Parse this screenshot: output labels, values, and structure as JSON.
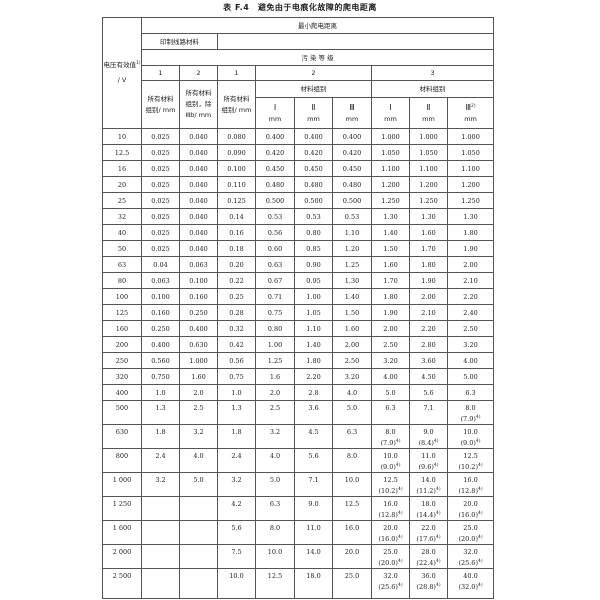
{
  "title": "表 F.4　避免由于电痕化故障的爬电距离",
  "header": {
    "voltage": "电压有效值",
    "voltage_sup": "1)",
    "voltage_unit": "/ V",
    "min_creepage": "最小爬电距离",
    "pcb_material": "印制线路材料",
    "pollution_degree": "污 染 等 级",
    "degrees": [
      "1",
      "2",
      "1",
      "2",
      "3"
    ],
    "all_groups": "所有材料组别/ mm",
    "all_groups_except": "所有材料组别，除Ⅲb/ mm",
    "all_groups_2": "所有材料组别/ mm",
    "material_group": "材料组别",
    "material_group_2": "材料组别",
    "groups": [
      "Ⅰ",
      "Ⅱ",
      "Ⅲ",
      "Ⅰ",
      "Ⅱ",
      "Ⅲ"
    ],
    "group_sup": "2)",
    "unit": "mm"
  },
  "footnote_mark": "4)",
  "rows": [
    {
      "v": "10",
      "c": [
        "0.025",
        "0.040",
        "0.080",
        "0.400",
        "0.400",
        "0.400",
        "1.000",
        "1.000",
        "1.000"
      ],
      "p": [
        "",
        "",
        ""
      ]
    },
    {
      "v": "12.5",
      "c": [
        "0.025",
        "0.040",
        "0.090",
        "0.420",
        "0.420",
        "0.420",
        "1.050",
        "1.050",
        "1.050"
      ],
      "p": [
        "",
        "",
        ""
      ]
    },
    {
      "v": "16",
      "c": [
        "0.025",
        "0.040",
        "0.100",
        "0.450",
        "0.450",
        "0.450",
        "1.100",
        "1.100",
        "1.100"
      ],
      "p": [
        "",
        "",
        ""
      ]
    },
    {
      "v": "20",
      "c": [
        "0.025",
        "0.040",
        "0.110",
        "0.480",
        "0.480",
        "0.480",
        "1.200",
        "1.200",
        "1.200"
      ],
      "p": [
        "",
        "",
        ""
      ]
    },
    {
      "v": "25",
      "c": [
        "0.025",
        "0.040",
        "0.125",
        "0.500",
        "0.500",
        "0.500",
        "1.250",
        "1.250",
        "1.250"
      ],
      "p": [
        "",
        "",
        ""
      ]
    },
    {
      "v": "32",
      "c": [
        "0.025",
        "0.040",
        "0.14",
        "0.53",
        "0.53",
        "0.53",
        "1.30",
        "1.30",
        "1.30"
      ],
      "p": [
        "",
        "",
        ""
      ]
    },
    {
      "v": "40",
      "c": [
        "0.025",
        "0.040",
        "0.16",
        "0.56",
        "0.80",
        "1.10",
        "1.40",
        "1.60",
        "1.80"
      ],
      "p": [
        "",
        "",
        ""
      ]
    },
    {
      "v": "50",
      "c": [
        "0.025",
        "0.040",
        "0.18",
        "0.60",
        "0.85",
        "1.20",
        "1.50",
        "1.70",
        "1.90"
      ],
      "p": [
        "",
        "",
        ""
      ]
    },
    {
      "v": "63",
      "c": [
        "0.04",
        "0.063",
        "0.20",
        "0.63",
        "0.90",
        "1.25",
        "1.60",
        "1.80",
        "2.00"
      ],
      "p": [
        "",
        "",
        ""
      ]
    },
    {
      "v": "80",
      "c": [
        "0.063",
        "0.100",
        "0.22",
        "0.67",
        "0.95",
        "1.30",
        "1.70",
        "1.90",
        "2.10"
      ],
      "p": [
        "",
        "",
        ""
      ]
    },
    {
      "v": "100",
      "c": [
        "0.100",
        "0.160",
        "0.25",
        "0.71",
        "1.00",
        "1.40",
        "1.80",
        "2.00",
        "2.20"
      ],
      "p": [
        "",
        "",
        ""
      ]
    },
    {
      "v": "125",
      "c": [
        "0.160",
        "0.250",
        "0.28",
        "0.75",
        "1.05",
        "1.50",
        "1.90",
        "2.10",
        "2.40"
      ],
      "p": [
        "",
        "",
        ""
      ]
    },
    {
      "v": "160",
      "c": [
        "0.250",
        "0.400",
        "0.32",
        "0.80",
        "1.10",
        "1.60",
        "2.00",
        "2.20",
        "2.50"
      ],
      "p": [
        "",
        "",
        ""
      ]
    },
    {
      "v": "200",
      "c": [
        "0.400",
        "0.630",
        "0.42",
        "1.00",
        "1.40",
        "2.00",
        "2.50",
        "2.80",
        "3.20"
      ],
      "p": [
        "",
        "",
        ""
      ]
    },
    {
      "v": "250",
      "c": [
        "0.560",
        "1.000",
        "0.56",
        "1.25",
        "1.80",
        "2.50",
        "3.20",
        "3.60",
        "4.00"
      ],
      "p": [
        "",
        "",
        ""
      ]
    },
    {
      "v": "320",
      "c": [
        "0.750",
        "1.60",
        "0.75",
        "1.6",
        "2.20",
        "3.20",
        "4.00",
        "4.50",
        "5.00"
      ],
      "p": [
        "",
        "",
        ""
      ]
    },
    {
      "v": "400",
      "c": [
        "1.0",
        "2.0",
        "1.0",
        "2.0",
        "2.8",
        "4.0",
        "5.0",
        "5.6",
        "6.3"
      ],
      "p": [
        "",
        "",
        ""
      ]
    },
    {
      "v": "500",
      "c": [
        "1.3",
        "2.5",
        "1.3",
        "2.5",
        "3.6",
        "5.0",
        "6.3",
        "7.1",
        "8.0"
      ],
      "p": [
        "",
        "",
        "(7.9)"
      ]
    },
    {
      "v": "630",
      "c": [
        "1.8",
        "3.2",
        "1.8",
        "3.2",
        "4.5",
        "6.3",
        "8.0",
        "9.0",
        "10.0"
      ],
      "p": [
        "(7.9)",
        "(8.4)",
        "(9.0)"
      ]
    },
    {
      "v": "800",
      "c": [
        "2.4",
        "4.0",
        "2.4",
        "4.0",
        "5.6",
        "8.0",
        "10.0",
        "11.0",
        "12.5"
      ],
      "p": [
        "(9.0)",
        "(9.6)",
        "(10.2)"
      ]
    },
    {
      "v": "1 000",
      "c": [
        "3.2",
        "5.0",
        "3.2",
        "5.0",
        "7.1",
        "10.0",
        "12.5",
        "14.0",
        "16.0"
      ],
      "p": [
        "(10.2)",
        "(11.2)",
        "(12.8)"
      ]
    },
    {
      "v": "1 250",
      "c": [
        "",
        "",
        "4.2",
        "6.3",
        "9.0",
        "12.5",
        "16.0",
        "18.0",
        "20.0"
      ],
      "p": [
        "(12.8)",
        "(14.4)",
        "(16.0)"
      ]
    },
    {
      "v": "1 600",
      "c": [
        "",
        "",
        "5.6",
        "8.0",
        "11.0",
        "16.0",
        "20.0",
        "22.0",
        "25.0"
      ],
      "p": [
        "(16.0)",
        "(17.6)",
        "(20.0)"
      ]
    },
    {
      "v": "2 000",
      "c": [
        "",
        "",
        "7.5",
        "10.0",
        "14.0",
        "20.0",
        "25.0",
        "28.0",
        "32.0"
      ],
      "p": [
        "(20.0)",
        "(22.4)",
        "(25.6)"
      ]
    },
    {
      "v": "2 500",
      "c": [
        "",
        "",
        "10.0",
        "12.5",
        "18.0",
        "25.0",
        "32.0",
        "36.0",
        "40.0"
      ],
      "p": [
        "(25.6)",
        "(28.8)",
        "(32.0)"
      ]
    }
  ]
}
